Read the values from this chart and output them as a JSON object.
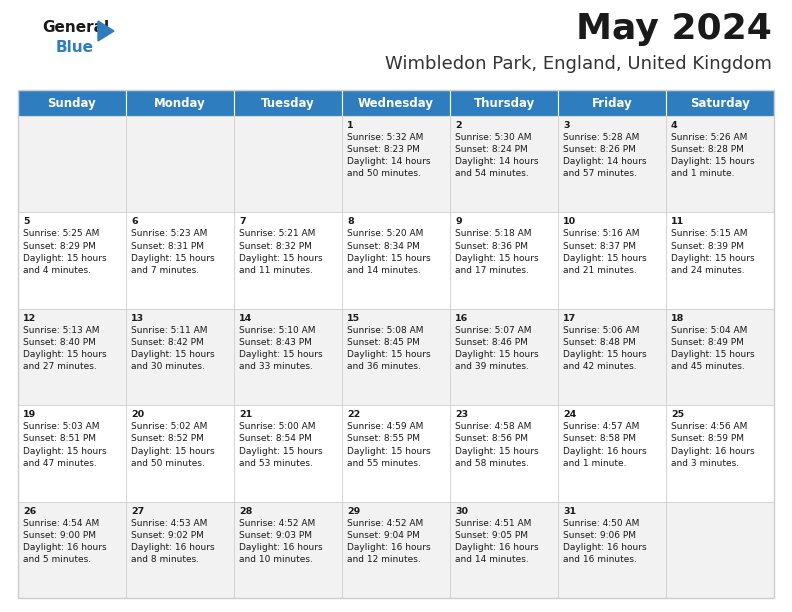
{
  "title": "May 2024",
  "subtitle": "Wimbledon Park, England, United Kingdom",
  "header_bg": "#2E7DBE",
  "header_text_color": "#FFFFFF",
  "row_bg_odd": "#F2F2F2",
  "row_bg_even": "#FFFFFF",
  "border_color": "#CCCCCC",
  "day_headers": [
    "Sunday",
    "Monday",
    "Tuesday",
    "Wednesday",
    "Thursday",
    "Friday",
    "Saturday"
  ],
  "calendar_data": [
    [
      "",
      "",
      "",
      "1\nSunrise: 5:32 AM\nSunset: 8:23 PM\nDaylight: 14 hours\nand 50 minutes.",
      "2\nSunrise: 5:30 AM\nSunset: 8:24 PM\nDaylight: 14 hours\nand 54 minutes.",
      "3\nSunrise: 5:28 AM\nSunset: 8:26 PM\nDaylight: 14 hours\nand 57 minutes.",
      "4\nSunrise: 5:26 AM\nSunset: 8:28 PM\nDaylight: 15 hours\nand 1 minute."
    ],
    [
      "5\nSunrise: 5:25 AM\nSunset: 8:29 PM\nDaylight: 15 hours\nand 4 minutes.",
      "6\nSunrise: 5:23 AM\nSunset: 8:31 PM\nDaylight: 15 hours\nand 7 minutes.",
      "7\nSunrise: 5:21 AM\nSunset: 8:32 PM\nDaylight: 15 hours\nand 11 minutes.",
      "8\nSunrise: 5:20 AM\nSunset: 8:34 PM\nDaylight: 15 hours\nand 14 minutes.",
      "9\nSunrise: 5:18 AM\nSunset: 8:36 PM\nDaylight: 15 hours\nand 17 minutes.",
      "10\nSunrise: 5:16 AM\nSunset: 8:37 PM\nDaylight: 15 hours\nand 21 minutes.",
      "11\nSunrise: 5:15 AM\nSunset: 8:39 PM\nDaylight: 15 hours\nand 24 minutes."
    ],
    [
      "12\nSunrise: 5:13 AM\nSunset: 8:40 PM\nDaylight: 15 hours\nand 27 minutes.",
      "13\nSunrise: 5:11 AM\nSunset: 8:42 PM\nDaylight: 15 hours\nand 30 minutes.",
      "14\nSunrise: 5:10 AM\nSunset: 8:43 PM\nDaylight: 15 hours\nand 33 minutes.",
      "15\nSunrise: 5:08 AM\nSunset: 8:45 PM\nDaylight: 15 hours\nand 36 minutes.",
      "16\nSunrise: 5:07 AM\nSunset: 8:46 PM\nDaylight: 15 hours\nand 39 minutes.",
      "17\nSunrise: 5:06 AM\nSunset: 8:48 PM\nDaylight: 15 hours\nand 42 minutes.",
      "18\nSunrise: 5:04 AM\nSunset: 8:49 PM\nDaylight: 15 hours\nand 45 minutes."
    ],
    [
      "19\nSunrise: 5:03 AM\nSunset: 8:51 PM\nDaylight: 15 hours\nand 47 minutes.",
      "20\nSunrise: 5:02 AM\nSunset: 8:52 PM\nDaylight: 15 hours\nand 50 minutes.",
      "21\nSunrise: 5:00 AM\nSunset: 8:54 PM\nDaylight: 15 hours\nand 53 minutes.",
      "22\nSunrise: 4:59 AM\nSunset: 8:55 PM\nDaylight: 15 hours\nand 55 minutes.",
      "23\nSunrise: 4:58 AM\nSunset: 8:56 PM\nDaylight: 15 hours\nand 58 minutes.",
      "24\nSunrise: 4:57 AM\nSunset: 8:58 PM\nDaylight: 16 hours\nand 1 minute.",
      "25\nSunrise: 4:56 AM\nSunset: 8:59 PM\nDaylight: 16 hours\nand 3 minutes."
    ],
    [
      "26\nSunrise: 4:54 AM\nSunset: 9:00 PM\nDaylight: 16 hours\nand 5 minutes.",
      "27\nSunrise: 4:53 AM\nSunset: 9:02 PM\nDaylight: 16 hours\nand 8 minutes.",
      "28\nSunrise: 4:52 AM\nSunset: 9:03 PM\nDaylight: 16 hours\nand 10 minutes.",
      "29\nSunrise: 4:52 AM\nSunset: 9:04 PM\nDaylight: 16 hours\nand 12 minutes.",
      "30\nSunrise: 4:51 AM\nSunset: 9:05 PM\nDaylight: 16 hours\nand 14 minutes.",
      "31\nSunrise: 4:50 AM\nSunset: 9:06 PM\nDaylight: 16 hours\nand 16 minutes.",
      ""
    ]
  ],
  "logo_color_general": "#1A1A1A",
  "logo_color_blue": "#2E7DBE",
  "title_color": "#1A1A1A",
  "subtitle_color": "#333333",
  "cell_text_color": "#1A1A1A",
  "cell_text_size": 6.8,
  "header_text_size": 8.5,
  "title_size": 26,
  "subtitle_size": 13,
  "logo_fontsize": 11
}
